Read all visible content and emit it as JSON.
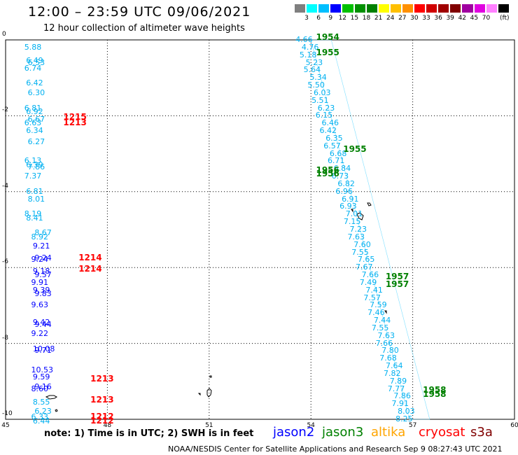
{
  "header": {
    "title": "12:00 – 23:59 UTC 09/06/2021",
    "subtitle": "12 hour collection of altimeter wave heights"
  },
  "legend": {
    "colors": [
      "#7f7f7f",
      "#00ffff",
      "#00bfff",
      "#0000ff",
      "#00c000",
      "#009000",
      "#008000",
      "#ffff00",
      "#ffc000",
      "#ff9000",
      "#ff0000",
      "#d00000",
      "#a00000",
      "#800000",
      "#a000a0",
      "#e000e0",
      "#ff80ff",
      "#000000"
    ],
    "labels": [
      "3",
      "6",
      "9",
      "12",
      "15",
      "18",
      "21",
      "24",
      "27",
      "30",
      "33",
      "36",
      "39",
      "42",
      "45",
      "70"
    ],
    "unit": "(ft)"
  },
  "axes": {
    "x_ticks": [
      "45",
      "48",
      "51",
      "54",
      "57",
      "60"
    ],
    "y_ticks": [
      "0",
      "-2",
      "-4",
      "-6",
      "-8",
      "-10"
    ]
  },
  "note": "note:  1) Time is in UTC;  2) SWH is in feet",
  "satellites": [
    {
      "name": "jason2",
      "color": "#0000ff"
    },
    {
      "name": "jason3",
      "color": "#008000"
    },
    {
      "name": "altika",
      "color": "#ffa500"
    },
    {
      "name": "cryosat",
      "color": "#ff0000"
    },
    {
      "name": "s3a",
      "color": "#800000"
    }
  ],
  "credit": "NOAA/NESDIS Center for Satellite Applications and Research     Sep  9 08:27:43 UTC 2021",
  "chart_data": {
    "type": "scatter",
    "xlim": [
      45,
      60
    ],
    "ylim": [
      -10,
      0
    ],
    "grid": true,
    "track_west": [
      {
        "lat": -0.2,
        "val": "5.88",
        "c": "#00b0f0"
      },
      {
        "lat": -0.55,
        "val": "6.49",
        "c": "#00b0f0"
      },
      {
        "lat": -0.6,
        "val": "6.53",
        "c": "#00b0f0"
      },
      {
        "lat": -0.75,
        "val": "6.74",
        "c": "#00b0f0"
      },
      {
        "lat": -1.15,
        "val": "6.42",
        "c": "#00b0f0"
      },
      {
        "lat": -1.4,
        "val": "6.30",
        "c": "#00b0f0"
      },
      {
        "lat": -1.8,
        "val": "6.81",
        "c": "#00b0f0"
      },
      {
        "lat": -1.9,
        "val": "6.92",
        "c": "#00b0f0"
      },
      {
        "lat": -2.1,
        "val": "6.67",
        "c": "#00b0f0"
      },
      {
        "lat": -2.2,
        "val": "6.63",
        "c": "#00b0f0"
      },
      {
        "lat": -2.4,
        "val": "6.34",
        "c": "#00b0f0"
      },
      {
        "lat": -2.7,
        "val": "6.27",
        "c": "#00b0f0"
      },
      {
        "lat": -3.2,
        "val": "6.13",
        "c": "#00b0f0"
      },
      {
        "lat": -3.3,
        "val": "6.39",
        "c": "#00b0f0"
      },
      {
        "lat": -3.35,
        "val": "7.86",
        "c": "#00b0f0"
      },
      {
        "lat": -3.6,
        "val": "7.37",
        "c": "#00b0f0"
      },
      {
        "lat": -4.0,
        "val": "6.81",
        "c": "#00b0f0"
      },
      {
        "lat": -4.2,
        "val": "8.01",
        "c": "#00b0f0"
      },
      {
        "lat": -4.6,
        "val": "8.19",
        "c": "#00b0f0"
      },
      {
        "lat": -4.7,
        "val": "8.41",
        "c": "#00b0f0"
      },
      {
        "lat": -5.1,
        "val": "8.67",
        "c": "#00b0f0"
      },
      {
        "lat": -5.2,
        "val": "8.92",
        "c": "#00b0f0"
      },
      {
        "lat": -5.45,
        "val": "9.21",
        "c": "#0000ff"
      },
      {
        "lat": -5.75,
        "val": "9.24",
        "c": "#0000ff"
      },
      {
        "lat": -5.8,
        "val": "9.24",
        "c": "#0000ff"
      },
      {
        "lat": -6.1,
        "val": "9.18",
        "c": "#0000ff"
      },
      {
        "lat": -6.2,
        "val": "9.57",
        "c": "#0000ff"
      },
      {
        "lat": -6.4,
        "val": "9.91",
        "c": "#0000ff"
      },
      {
        "lat": -6.6,
        "val": "9.39",
        "c": "#0000ff"
      },
      {
        "lat": -6.7,
        "val": "9.83",
        "c": "#0000ff"
      },
      {
        "lat": -7.0,
        "val": "9.63",
        "c": "#0000ff"
      },
      {
        "lat": -7.45,
        "val": "9.42",
        "c": "#0000ff"
      },
      {
        "lat": -7.5,
        "val": "9.44",
        "c": "#0000ff"
      },
      {
        "lat": -7.75,
        "val": "9.22",
        "c": "#0000ff"
      },
      {
        "lat": -8.15,
        "val": "10.08",
        "c": "#0000ff"
      },
      {
        "lat": -8.2,
        "val": "9.71",
        "c": "#0000ff"
      },
      {
        "lat": -8.7,
        "val": "10.53",
        "c": "#0000ff"
      },
      {
        "lat": -8.9,
        "val": "9.59",
        "c": "#0000ff"
      },
      {
        "lat": -9.15,
        "val": "9.16",
        "c": "#0000ff"
      },
      {
        "lat": -9.2,
        "val": "8.60",
        "c": "#0000ff"
      },
      {
        "lat": -9.55,
        "val": "8.55",
        "c": "#00b0f0"
      },
      {
        "lat": -9.8,
        "val": "6.23",
        "c": "#00b0f0"
      },
      {
        "lat": -9.95,
        "val": "6.33",
        "c": "#00b0f0"
      },
      {
        "lat": -10.05,
        "val": "6.44",
        "c": "#00b0f0"
      }
    ],
    "track_east": [
      {
        "lat": 0.0,
        "val": "4.66"
      },
      {
        "lat": -0.2,
        "val": "4.76"
      },
      {
        "lat": -0.4,
        "val": "5.18"
      },
      {
        "lat": -0.6,
        "val": "5.23"
      },
      {
        "lat": -0.8,
        "val": "5.64"
      },
      {
        "lat": -1.0,
        "val": "5.34"
      },
      {
        "lat": -1.2,
        "val": "5.50"
      },
      {
        "lat": -1.4,
        "val": "6.03"
      },
      {
        "lat": -1.6,
        "val": "5.51"
      },
      {
        "lat": -1.8,
        "val": "6.23"
      },
      {
        "lat": -2.0,
        "val": "6.15"
      },
      {
        "lat": -2.2,
        "val": "6.46"
      },
      {
        "lat": -2.4,
        "val": "6.42"
      },
      {
        "lat": -2.6,
        "val": "6.35"
      },
      {
        "lat": -2.8,
        "val": "6.57"
      },
      {
        "lat": -3.0,
        "val": "6.68"
      },
      {
        "lat": -3.2,
        "val": "6.71"
      },
      {
        "lat": -3.4,
        "val": "6.84"
      },
      {
        "lat": -3.6,
        "val": "6.73"
      },
      {
        "lat": -3.8,
        "val": "6.82"
      },
      {
        "lat": -4.0,
        "val": "6.96"
      },
      {
        "lat": -4.2,
        "val": "6.91"
      },
      {
        "lat": -4.4,
        "val": "6.93"
      },
      {
        "lat": -4.6,
        "val": "7.01"
      },
      {
        "lat": -4.8,
        "val": "7.15"
      },
      {
        "lat": -5.0,
        "val": "7.23"
      },
      {
        "lat": -5.2,
        "val": "7.63"
      },
      {
        "lat": -5.4,
        "val": "7.60"
      },
      {
        "lat": -5.6,
        "val": "7.55"
      },
      {
        "lat": -5.8,
        "val": "7.65"
      },
      {
        "lat": -6.0,
        "val": "7.67"
      },
      {
        "lat": -6.2,
        "val": "7.66"
      },
      {
        "lat": -6.4,
        "val": "7.49"
      },
      {
        "lat": -6.6,
        "val": "7.41"
      },
      {
        "lat": -6.8,
        "val": "7.57"
      },
      {
        "lat": -7.0,
        "val": "7.59"
      },
      {
        "lat": -7.2,
        "val": "7.46"
      },
      {
        "lat": -7.4,
        "val": "7.44"
      },
      {
        "lat": -7.6,
        "val": "7.55"
      },
      {
        "lat": -7.8,
        "val": "7.63"
      },
      {
        "lat": -8.0,
        "val": "7.66"
      },
      {
        "lat": -8.2,
        "val": "7.80"
      },
      {
        "lat": -8.4,
        "val": "7.68"
      },
      {
        "lat": -8.6,
        "val": "7.64"
      },
      {
        "lat": -8.8,
        "val": "7.82"
      },
      {
        "lat": -9.0,
        "val": "7.89"
      },
      {
        "lat": -9.2,
        "val": "7.77"
      },
      {
        "lat": -9.4,
        "val": "7.86"
      },
      {
        "lat": -9.6,
        "val": "7.91"
      },
      {
        "lat": -9.8,
        "val": "8.03"
      },
      {
        "lat": -10.0,
        "val": "8.25"
      }
    ],
    "time_labels": [
      {
        "text": "1954",
        "x": 54.15,
        "y": 0.05,
        "c": "#008000"
      },
      {
        "text": "1955",
        "x": 54.15,
        "y": -0.35,
        "c": "#008000"
      },
      {
        "text": "1955",
        "x": 54.95,
        "y": -2.9,
        "c": "#008000"
      },
      {
        "text": "1956",
        "x": 54.15,
        "y": -3.45,
        "c": "#008000"
      },
      {
        "text": "1956",
        "x": 54.15,
        "y": -3.55,
        "c": "#008000"
      },
      {
        "text": "1957",
        "x": 56.2,
        "y": -6.25,
        "c": "#008000"
      },
      {
        "text": "1957",
        "x": 56.2,
        "y": -6.45,
        "c": "#008000"
      },
      {
        "text": "1958",
        "x": 57.3,
        "y": -9.25,
        "c": "#008000"
      },
      {
        "text": "1958",
        "x": 57.3,
        "y": -9.35,
        "c": "#008000"
      },
      {
        "text": "1215",
        "x": 46.7,
        "y": -2.05,
        "c": "#ff0000"
      },
      {
        "text": "1213",
        "x": 46.7,
        "y": -2.2,
        "c": "#ff0000"
      },
      {
        "text": "1214",
        "x": 47.15,
        "y": -5.75,
        "c": "#ff0000"
      },
      {
        "text": "1214",
        "x": 47.15,
        "y": -6.05,
        "c": "#ff0000"
      },
      {
        "text": "1213",
        "x": 47.5,
        "y": -8.95,
        "c": "#ff0000"
      },
      {
        "text": "1213",
        "x": 47.5,
        "y": -9.5,
        "c": "#ff0000"
      },
      {
        "text": "1212",
        "x": 47.5,
        "y": -9.95,
        "c": "#ff0000"
      },
      {
        "text": "1212",
        "x": 47.5,
        "y": -10.05,
        "c": "#ff0000"
      }
    ]
  }
}
